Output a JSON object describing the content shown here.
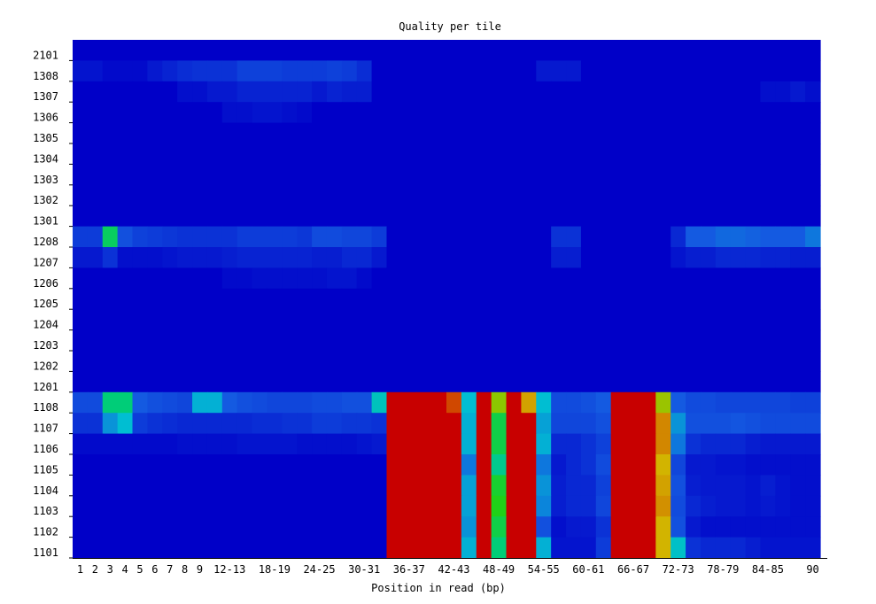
{
  "chart_data": {
    "type": "heatmap",
    "title": "Quality per tile",
    "xlabel": "Position in read (bp)",
    "ylabel": "",
    "x_tick_labels": [
      "1",
      "2",
      "3",
      "4",
      "5",
      "6",
      "7",
      "8",
      "9",
      "12-13",
      "18-19",
      "24-25",
      "30-31",
      "36-37",
      "42-43",
      "48-49",
      "54-55",
      "60-61",
      "66-67",
      "72-73",
      "78-79",
      "84-85",
      "90"
    ],
    "tiles": [
      "2101",
      "1308",
      "1307",
      "1306",
      "1305",
      "1304",
      "1303",
      "1302",
      "1301",
      "1208",
      "1207",
      "1206",
      "1205",
      "1204",
      "1203",
      "1202",
      "1201",
      "1108",
      "1107",
      "1106",
      "1105",
      "1104",
      "1103",
      "1102",
      "1101"
    ],
    "columns": [
      "1",
      "2",
      "3",
      "4",
      "5",
      "6",
      "7",
      "8",
      "9",
      "10-11",
      "12-13",
      "14-15",
      "16-17",
      "18-19",
      "20-21",
      "22-23",
      "24-25",
      "26-27",
      "28-29",
      "30-31",
      "32-33",
      "34-35",
      "36-37",
      "38-39",
      "40-41",
      "42-43",
      "44-45",
      "46-47",
      "48-49",
      "50-51",
      "52-53",
      "54-55",
      "56-57",
      "58-59",
      "60-61",
      "62-63",
      "64-65",
      "66-67",
      "68-69",
      "70-71",
      "72-73",
      "74-75",
      "76-77",
      "78-79",
      "80-81",
      "82-83",
      "84-85",
      "86-87",
      "88-89",
      "90"
    ],
    "value_scale": "0 = blue (good) to 10 = red (poor)",
    "values": [
      [
        0,
        0,
        0,
        0,
        0,
        0,
        0,
        0,
        0,
        0,
        0,
        0,
        0,
        0,
        0,
        0,
        0,
        0,
        0,
        0,
        0,
        0,
        0,
        0,
        0,
        0,
        0,
        0,
        0,
        0,
        0,
        0,
        0,
        0,
        0,
        0,
        0,
        0,
        0,
        0,
        0,
        0,
        0,
        0,
        0,
        0,
        0,
        0,
        0,
        0
      ],
      [
        0.4,
        0.4,
        0.2,
        0.2,
        0.2,
        0.5,
        0.7,
        0.9,
        1.0,
        1.0,
        1.0,
        1.3,
        1.3,
        1.3,
        1.2,
        1.2,
        1.2,
        1.3,
        1.2,
        0.9,
        0,
        0,
        0,
        0,
        0,
        0,
        0,
        0,
        0,
        0,
        0,
        0.5,
        0.5,
        0.5,
        0,
        0,
        0,
        0,
        0,
        0,
        0,
        0,
        0,
        0,
        0,
        0,
        0,
        0,
        0,
        0
      ],
      [
        0,
        0,
        0,
        0,
        0,
        0,
        0,
        0.3,
        0.3,
        0.5,
        0.5,
        0.7,
        0.7,
        0.7,
        0.7,
        0.7,
        0.5,
        0.7,
        0.6,
        0.6,
        0,
        0,
        0,
        0,
        0,
        0,
        0,
        0,
        0,
        0,
        0,
        0,
        0,
        0,
        0,
        0,
        0,
        0,
        0,
        0,
        0,
        0,
        0,
        0,
        0,
        0,
        0.3,
        0.3,
        0.5,
        0.3
      ],
      [
        0,
        0,
        0,
        0,
        0,
        0,
        0,
        0,
        0,
        0,
        0.3,
        0.3,
        0.4,
        0.4,
        0.3,
        0.2,
        0,
        0,
        0,
        0,
        0,
        0,
        0,
        0,
        0,
        0,
        0,
        0,
        0,
        0,
        0,
        0,
        0,
        0,
        0,
        0,
        0,
        0,
        0,
        0,
        0,
        0,
        0,
        0,
        0,
        0,
        0,
        0,
        0,
        0
      ],
      [
        0,
        0,
        0,
        0,
        0,
        0,
        0,
        0,
        0,
        0,
        0,
        0,
        0,
        0,
        0,
        0,
        0,
        0,
        0,
        0,
        0,
        0,
        0,
        0,
        0,
        0,
        0,
        0,
        0,
        0,
        0,
        0,
        0,
        0,
        0,
        0,
        0,
        0,
        0,
        0,
        0,
        0,
        0,
        0,
        0,
        0,
        0,
        0,
        0,
        0
      ],
      [
        0,
        0,
        0,
        0,
        0,
        0,
        0,
        0,
        0,
        0,
        0,
        0,
        0,
        0,
        0,
        0,
        0,
        0,
        0,
        0,
        0,
        0,
        0,
        0,
        0,
        0,
        0,
        0,
        0,
        0,
        0,
        0,
        0,
        0,
        0,
        0,
        0,
        0,
        0,
        0,
        0,
        0,
        0,
        0,
        0,
        0,
        0,
        0,
        0,
        0
      ],
      [
        0,
        0,
        0,
        0,
        0,
        0,
        0,
        0,
        0,
        0,
        0,
        0,
        0,
        0,
        0,
        0,
        0,
        0,
        0,
        0,
        0,
        0,
        0,
        0,
        0,
        0,
        0,
        0,
        0,
        0,
        0,
        0,
        0,
        0,
        0,
        0,
        0,
        0,
        0,
        0,
        0,
        0,
        0,
        0,
        0,
        0,
        0,
        0,
        0,
        0
      ],
      [
        0,
        0,
        0,
        0,
        0,
        0,
        0,
        0,
        0,
        0,
        0,
        0,
        0,
        0,
        0,
        0,
        0,
        0,
        0,
        0,
        0,
        0,
        0,
        0,
        0,
        0,
        0,
        0,
        0,
        0,
        0,
        0,
        0,
        0,
        0,
        0,
        0,
        0,
        0,
        0,
        0,
        0,
        0,
        0,
        0,
        0,
        0,
        0,
        0,
        0
      ],
      [
        0,
        0,
        0,
        0,
        0,
        0,
        0,
        0,
        0,
        0,
        0,
        0,
        0,
        0,
        0,
        0,
        0,
        0,
        0,
        0,
        0,
        0,
        0,
        0,
        0,
        0,
        0,
        0,
        0,
        0,
        0,
        0,
        0,
        0,
        0,
        0,
        0,
        0,
        0,
        0,
        0,
        0,
        0,
        0,
        0,
        0,
        0,
        0,
        0,
        0
      ],
      [
        1.2,
        1.2,
        5.0,
        1.6,
        1.3,
        1.2,
        1.1,
        1.0,
        1.0,
        1.0,
        1.0,
        1.2,
        1.2,
        1.2,
        1.2,
        1.1,
        1.5,
        1.5,
        1.4,
        1.4,
        1.2,
        0,
        0,
        0,
        0,
        0,
        0,
        0,
        0,
        0,
        0,
        0,
        1.0,
        1.0,
        0,
        0,
        0,
        0,
        0,
        0,
        0.8,
        1.8,
        1.8,
        2.0,
        2.0,
        1.9,
        1.8,
        1.8,
        1.8,
        2.2
      ],
      [
        0.5,
        0.5,
        1.0,
        0.3,
        0.3,
        0.3,
        0.4,
        0.5,
        0.5,
        0.5,
        0.6,
        0.7,
        0.7,
        0.7,
        0.7,
        0.7,
        0.6,
        0.6,
        0.8,
        0.8,
        0.5,
        0,
        0,
        0,
        0,
        0,
        0,
        0,
        0,
        0,
        0,
        0,
        0.6,
        0.6,
        0,
        0,
        0,
        0,
        0,
        0,
        0.4,
        0.6,
        0.6,
        0.8,
        0.8,
        0.8,
        0.7,
        0.7,
        0.6,
        0.6
      ],
      [
        0,
        0,
        0,
        0,
        0,
        0,
        0,
        0,
        0,
        0,
        0.2,
        0.2,
        0.3,
        0.3,
        0.3,
        0.3,
        0.3,
        0.4,
        0.4,
        0.2,
        0,
        0,
        0,
        0,
        0,
        0,
        0,
        0,
        0,
        0,
        0,
        0,
        0,
        0,
        0,
        0,
        0,
        0,
        0,
        0,
        0,
        0,
        0,
        0,
        0,
        0,
        0,
        0,
        0,
        0
      ],
      [
        0,
        0,
        0,
        0,
        0,
        0,
        0,
        0,
        0,
        0,
        0,
        0,
        0,
        0,
        0,
        0,
        0,
        0,
        0,
        0,
        0,
        0,
        0,
        0,
        0,
        0,
        0,
        0,
        0,
        0,
        0,
        0,
        0,
        0,
        0,
        0,
        0,
        0,
        0,
        0,
        0,
        0,
        0,
        0,
        0,
        0,
        0,
        0,
        0,
        0
      ],
      [
        0,
        0,
        0,
        0,
        0,
        0,
        0,
        0,
        0,
        0,
        0,
        0,
        0,
        0,
        0,
        0,
        0,
        0,
        0,
        0,
        0,
        0,
        0,
        0,
        0,
        0,
        0,
        0,
        0,
        0,
        0,
        0,
        0,
        0,
        0,
        0,
        0,
        0,
        0,
        0,
        0,
        0,
        0,
        0,
        0,
        0,
        0,
        0,
        0,
        0
      ],
      [
        0,
        0,
        0,
        0,
        0,
        0,
        0,
        0,
        0,
        0,
        0,
        0,
        0,
        0,
        0,
        0,
        0,
        0,
        0,
        0,
        0,
        0,
        0,
        0,
        0,
        0,
        0,
        0,
        0,
        0,
        0,
        0,
        0,
        0,
        0,
        0,
        0,
        0,
        0,
        0,
        0,
        0,
        0,
        0,
        0,
        0,
        0,
        0,
        0,
        0
      ],
      [
        0,
        0,
        0,
        0,
        0,
        0,
        0,
        0,
        0,
        0,
        0,
        0,
        0,
        0,
        0,
        0,
        0,
        0,
        0,
        0,
        0,
        0,
        0,
        0,
        0,
        0,
        0,
        0,
        0,
        0,
        0,
        0,
        0,
        0,
        0,
        0,
        0,
        0,
        0,
        0,
        0,
        0,
        0,
        0,
        0,
        0,
        0,
        0,
        0,
        0
      ],
      [
        0,
        0,
        0,
        0,
        0,
        0,
        0,
        0,
        0,
        0,
        0,
        0,
        0,
        0,
        0,
        0,
        0,
        0,
        0,
        0,
        0,
        0,
        0,
        0,
        0,
        0,
        0,
        0,
        0,
        0,
        0,
        0,
        0,
        0,
        0,
        0,
        0,
        0,
        0,
        0,
        0,
        0,
        0,
        0,
        0,
        0,
        0,
        0,
        0,
        0
      ],
      [
        1.5,
        1.5,
        4.8,
        4.8,
        1.8,
        1.6,
        1.5,
        1.4,
        3.0,
        3.0,
        1.8,
        1.6,
        1.5,
        1.4,
        1.4,
        1.4,
        1.5,
        1.5,
        1.6,
        1.6,
        3.6,
        10,
        10,
        10,
        10,
        9.2,
        3.2,
        10,
        7.0,
        10,
        8.2,
        3.2,
        1.5,
        1.5,
        1.6,
        1.8,
        10,
        10,
        10,
        7.2,
        1.8,
        1.5,
        1.5,
        1.4,
        1.4,
        1.4,
        1.4,
        1.4,
        1.3,
        1.3
      ],
      [
        1.0,
        1.0,
        2.6,
        3.2,
        1.2,
        1.0,
        0.9,
        0.8,
        0.8,
        0.8,
        0.8,
        0.8,
        0.9,
        0.9,
        1.0,
        1.0,
        1.2,
        1.2,
        1.1,
        1.1,
        1.0,
        10,
        10,
        10,
        10,
        10,
        3.0,
        10,
        5.2,
        10,
        10,
        2.8,
        1.4,
        1.4,
        1.4,
        1.6,
        10,
        10,
        10,
        8.5,
        2.6,
        1.6,
        1.6,
        1.6,
        1.7,
        1.6,
        1.5,
        1.5,
        1.5,
        1.5
      ],
      [
        0.2,
        0.2,
        0.2,
        0.2,
        0.2,
        0.2,
        0.2,
        0.3,
        0.3,
        0.3,
        0.3,
        0.4,
        0.4,
        0.4,
        0.4,
        0.3,
        0.3,
        0.3,
        0.3,
        0.4,
        0.5,
        10,
        10,
        10,
        10,
        10,
        3.0,
        10,
        5.2,
        10,
        10,
        3.0,
        0.8,
        0.8,
        1.0,
        1.3,
        10,
        10,
        10,
        8.5,
        2.2,
        1.0,
        0.8,
        0.8,
        0.8,
        0.6,
        0.5,
        0.5,
        0.5,
        0.5
      ],
      [
        0,
        0,
        0,
        0,
        0,
        0,
        0,
        0,
        0,
        0,
        0,
        0,
        0,
        0,
        0,
        0,
        0,
        0,
        0,
        0,
        0,
        10,
        10,
        10,
        10,
        10,
        2.2,
        10,
        4.4,
        10,
        10,
        2.2,
        0.5,
        0.8,
        1.0,
        1.5,
        10,
        10,
        10,
        8.0,
        1.4,
        0.5,
        0.5,
        0.4,
        0.4,
        0.3,
        0.3,
        0.3,
        0.3,
        0.3
      ],
      [
        0,
        0,
        0,
        0,
        0,
        0,
        0,
        0,
        0,
        0,
        0,
        0,
        0,
        0,
        0,
        0,
        0,
        0,
        0,
        0,
        0,
        10,
        10,
        10,
        10,
        10,
        2.8,
        10,
        5.4,
        10,
        10,
        2.6,
        0.6,
        0.8,
        0.8,
        1.3,
        10,
        10,
        10,
        8.2,
        1.6,
        0.6,
        0.5,
        0.5,
        0.5,
        0.4,
        0.6,
        0.4,
        0.3,
        0.3
      ],
      [
        0,
        0,
        0,
        0,
        0,
        0,
        0,
        0,
        0,
        0,
        0,
        0,
        0,
        0,
        0,
        0,
        0,
        0,
        0,
        0,
        0,
        10,
        10,
        10,
        10,
        10,
        2.8,
        10,
        5.6,
        10,
        10,
        2.4,
        0.6,
        0.8,
        0.8,
        1.4,
        10,
        10,
        10,
        8.4,
        1.5,
        0.8,
        0.6,
        0.5,
        0.5,
        0.4,
        0.5,
        0.4,
        0.3,
        0.3
      ],
      [
        0,
        0,
        0,
        0,
        0,
        0,
        0,
        0,
        0,
        0,
        0,
        0,
        0,
        0,
        0,
        0,
        0,
        0,
        0,
        0,
        0,
        10,
        10,
        10,
        10,
        10,
        2.6,
        10,
        5.2,
        10,
        10,
        1.6,
        0.3,
        0.5,
        0.5,
        1.0,
        10,
        10,
        10,
        8.0,
        1.6,
        0.5,
        0.3,
        0.3,
        0.3,
        0.3,
        0.3,
        0.3,
        0.3,
        0.3
      ],
      [
        0,
        0,
        0,
        0,
        0,
        0,
        0,
        0,
        0,
        0,
        0,
        0,
        0,
        0,
        0,
        0,
        0,
        0,
        0,
        0,
        0,
        10,
        10,
        10,
        10,
        10,
        3.0,
        10,
        4.8,
        10,
        10,
        3.0,
        0.4,
        0.4,
        0.4,
        1.2,
        10,
        10,
        10,
        8.0,
        3.4,
        1.0,
        0.8,
        0.8,
        0.8,
        0.6,
        0.4,
        0.4,
        0.4,
        0.4
      ]
    ]
  }
}
